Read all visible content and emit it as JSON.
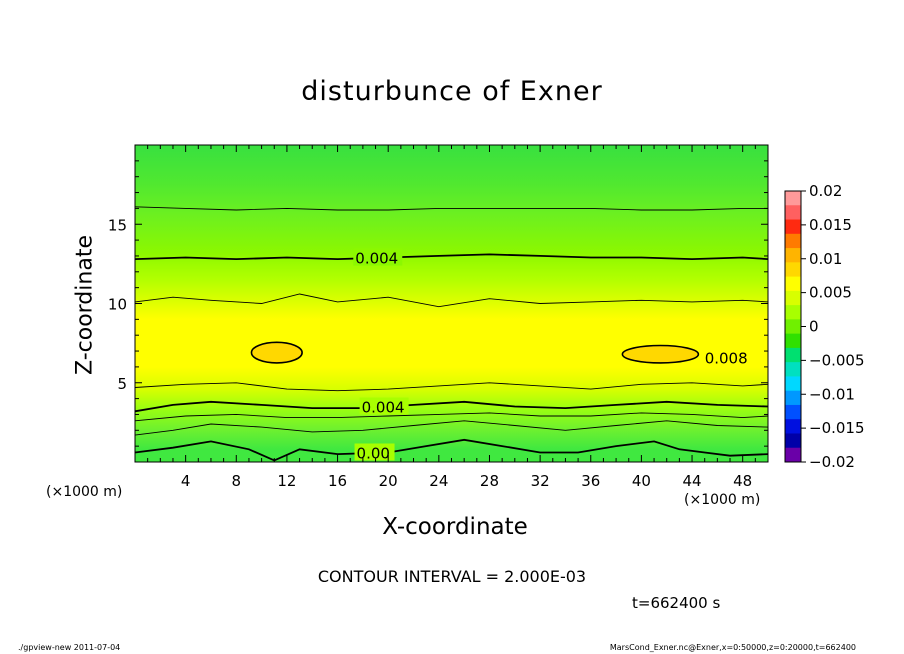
{
  "chart_data": {
    "type": "contour",
    "title": "disturbunce of Exner",
    "xlabel": "X-coordinate",
    "ylabel": "Z-coordinate",
    "x_unit": "(×1000 m)",
    "y_unit": "(×1000 m)",
    "xlim": [
      0,
      50
    ],
    "ylim": [
      0,
      20
    ],
    "x_ticks": [
      4,
      8,
      12,
      16,
      20,
      24,
      28,
      32,
      36,
      40,
      44,
      48
    ],
    "y_ticks": [
      5,
      10,
      15
    ],
    "contour_interval_text": "CONTOUR INTERVAL = 2.000E-03",
    "contour_labels": [
      {
        "text": "0.004",
        "x": 17.4,
        "z": 12.9
      },
      {
        "text": "0.004",
        "x": 17.9,
        "z": 3.5
      },
      {
        "text": "0.00",
        "x": 17.5,
        "z": 0.6
      },
      {
        "text": "0.008",
        "x": 45.0,
        "z": 6.6
      }
    ],
    "contours": [
      {
        "level": 0.0,
        "points": [
          [
            0,
            0.6
          ],
          [
            3,
            0.9
          ],
          [
            6,
            1.3
          ],
          [
            9,
            0.8
          ],
          [
            11,
            0.1
          ],
          [
            13,
            0.8
          ],
          [
            16,
            0.5
          ],
          [
            20,
            0.6
          ],
          [
            23,
            1.0
          ],
          [
            26,
            1.4
          ],
          [
            29,
            1.0
          ],
          [
            32,
            0.6
          ],
          [
            35,
            0.6
          ],
          [
            38,
            1.0
          ],
          [
            41,
            1.3
          ],
          [
            43,
            0.8
          ],
          [
            45,
            0.6
          ],
          [
            47,
            0.4
          ],
          [
            50,
            0.5
          ]
        ]
      },
      {
        "level": 0.001,
        "points": [
          [
            0,
            1.7
          ],
          [
            3,
            2.0
          ],
          [
            6,
            2.4
          ],
          [
            10,
            2.2
          ],
          [
            14,
            1.9
          ],
          [
            18,
            2.0
          ],
          [
            22,
            2.3
          ],
          [
            26,
            2.6
          ],
          [
            30,
            2.3
          ],
          [
            34,
            2.0
          ],
          [
            38,
            2.3
          ],
          [
            42,
            2.6
          ],
          [
            46,
            2.3
          ],
          [
            50,
            2.2
          ]
        ]
      },
      {
        "level": 0.002,
        "points": [
          [
            0,
            2.6
          ],
          [
            4,
            2.9
          ],
          [
            8,
            3.0
          ],
          [
            12,
            2.8
          ],
          [
            16,
            2.8
          ],
          [
            20,
            2.9
          ],
          [
            24,
            3.0
          ],
          [
            28,
            3.1
          ],
          [
            32,
            2.9
          ],
          [
            36,
            2.9
          ],
          [
            40,
            3.1
          ],
          [
            44,
            3.0
          ],
          [
            48,
            2.8
          ],
          [
            50,
            2.9
          ]
        ]
      },
      {
        "level": 0.004,
        "points": [
          [
            0,
            3.2
          ],
          [
            3,
            3.6
          ],
          [
            6,
            3.8
          ],
          [
            10,
            3.6
          ],
          [
            14,
            3.4
          ],
          [
            18,
            3.4
          ],
          [
            22,
            3.6
          ],
          [
            26,
            3.8
          ],
          [
            30,
            3.5
          ],
          [
            34,
            3.4
          ],
          [
            38,
            3.6
          ],
          [
            42,
            3.8
          ],
          [
            46,
            3.6
          ],
          [
            50,
            3.5
          ]
        ]
      },
      {
        "level": 0.005,
        "points": [
          [
            0,
            4.7
          ],
          [
            4,
            4.9
          ],
          [
            8,
            5.0
          ],
          [
            12,
            4.6
          ],
          [
            16,
            4.5
          ],
          [
            20,
            4.6
          ],
          [
            24,
            4.8
          ],
          [
            28,
            5.0
          ],
          [
            32,
            4.8
          ],
          [
            36,
            4.6
          ],
          [
            40,
            4.9
          ],
          [
            44,
            5.0
          ],
          [
            48,
            4.8
          ],
          [
            50,
            4.9
          ]
        ]
      },
      {
        "level": 0.006,
        "points": [
          [
            0,
            10.1
          ],
          [
            3,
            10.4
          ],
          [
            6,
            10.2
          ],
          [
            10,
            10.0
          ],
          [
            13,
            10.6
          ],
          [
            16,
            10.1
          ],
          [
            20,
            10.4
          ],
          [
            24,
            9.8
          ],
          [
            28,
            10.3
          ],
          [
            32,
            10.0
          ],
          [
            36,
            10.1
          ],
          [
            40,
            10.2
          ],
          [
            44,
            10.1
          ],
          [
            48,
            10.2
          ],
          [
            50,
            10.1
          ]
        ]
      },
      {
        "level": 0.004,
        "points": [
          [
            0,
            12.8
          ],
          [
            4,
            12.9
          ],
          [
            8,
            12.8
          ],
          [
            12,
            12.9
          ],
          [
            16,
            12.8
          ],
          [
            20,
            12.9
          ],
          [
            24,
            13.0
          ],
          [
            28,
            13.1
          ],
          [
            32,
            13.0
          ],
          [
            36,
            12.9
          ],
          [
            40,
            12.9
          ],
          [
            44,
            12.8
          ],
          [
            48,
            12.9
          ],
          [
            50,
            12.8
          ]
        ]
      },
      {
        "level": 0.002,
        "points": [
          [
            0,
            16.1
          ],
          [
            4,
            16.0
          ],
          [
            8,
            15.9
          ],
          [
            12,
            16.0
          ],
          [
            16,
            15.9
          ],
          [
            20,
            15.9
          ],
          [
            24,
            16.0
          ],
          [
            28,
            16.0
          ],
          [
            32,
            16.0
          ],
          [
            36,
            16.0
          ],
          [
            40,
            15.9
          ],
          [
            44,
            15.9
          ],
          [
            48,
            16.0
          ],
          [
            50,
            16.0
          ]
        ]
      }
    ],
    "highs": [
      {
        "cx": 11.2,
        "cz": 6.9,
        "rx": 2.0,
        "rz": 0.65
      },
      {
        "cx": 41.5,
        "cz": 6.8,
        "rx": 3.0,
        "rz": 0.55
      }
    ],
    "colorbar": {
      "ticks": [
        "0.02",
        "0.015",
        "0.01",
        "0.005",
        "0",
        "−0.005",
        "−0.01",
        "−0.015",
        "−0.02"
      ],
      "colors": [
        "#ff9a9a",
        "#ff6060",
        "#ff2a10",
        "#ff7a00",
        "#ffb400",
        "#ffd800",
        "#ffff00",
        "#d8ff00",
        "#a8ff00",
        "#70f000",
        "#30e000",
        "#00e070",
        "#00e0c0",
        "#00d8ff",
        "#0098ff",
        "#0050ff",
        "#0010e0",
        "#0000a8",
        "#6a00a8"
      ]
    }
  },
  "footer": {
    "left": "./gpview-new  2011-07-04",
    "right": "MarsCond_Exner.nc@Exner,x=0:50000,z=0:20000,t=662400"
  },
  "time_label": "t=662400 s"
}
